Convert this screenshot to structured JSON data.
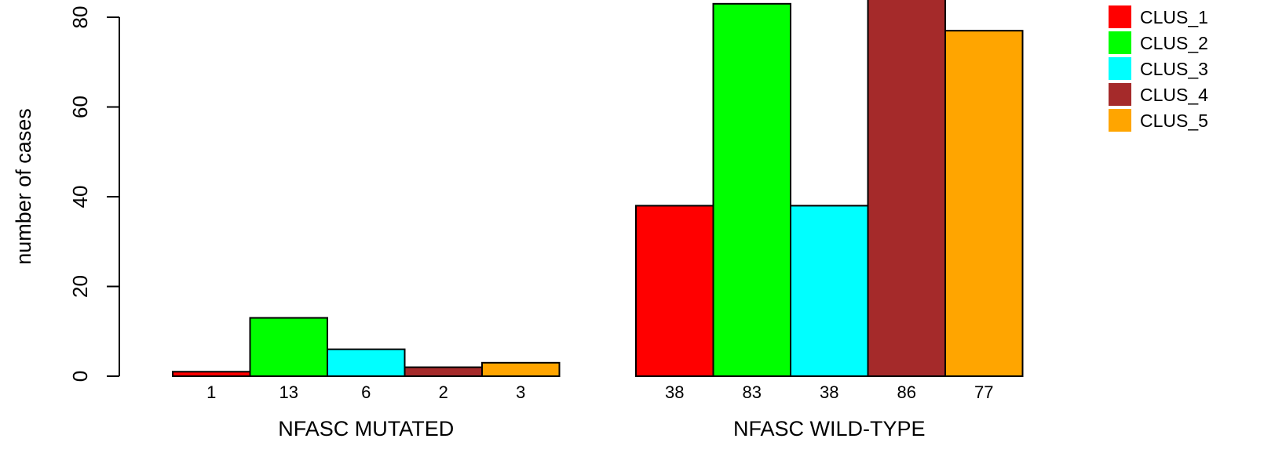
{
  "chart_data": {
    "type": "bar",
    "ylabel": "number of cases",
    "ylim": [
      0,
      80
    ],
    "yticks": [
      0,
      20,
      40,
      60,
      80
    ],
    "groups": [
      "NFASC MUTATED",
      "NFASC WILD-TYPE"
    ],
    "series": [
      {
        "name": "CLUS_1",
        "color": "#ff0000",
        "values": [
          1,
          38
        ]
      },
      {
        "name": "CLUS_2",
        "color": "#00ff00",
        "values": [
          13,
          83
        ]
      },
      {
        "name": "CLUS_3",
        "color": "#00ffff",
        "values": [
          6,
          38
        ]
      },
      {
        "name": "CLUS_4",
        "color": "#a52a2a",
        "values": [
          2,
          86
        ]
      },
      {
        "name": "CLUS_5",
        "color": "#ffa500",
        "values": [
          3,
          77
        ]
      }
    ],
    "grid": false,
    "legend_position": "top-right"
  }
}
